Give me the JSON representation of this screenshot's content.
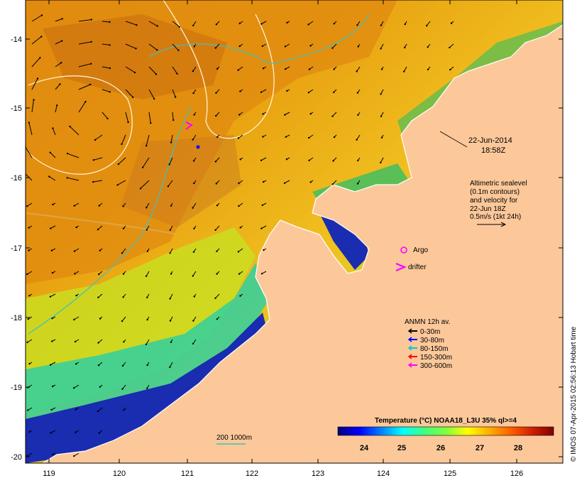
{
  "map": {
    "x_ticks": [
      "119",
      "120",
      "121",
      "122",
      "123",
      "124",
      "125",
      "126"
    ],
    "y_ticks": [
      "-14",
      "-15",
      "-16",
      "-17",
      "-18",
      "-19",
      "-20"
    ],
    "land_color": "#fcc89a",
    "frame_color": "#000000"
  },
  "annotations": {
    "date": "22-Jun-2014",
    "time": "18:58Z",
    "alt_lines": [
      "Altimetric sealevel",
      "(0.1m contours)",
      "and velocity for",
      "22-Jun 18Z",
      "0.5m/s (1kt 24h)"
    ],
    "argo_label": "Argo",
    "drifter_label": "drifter",
    "scale_label": "200  1000m",
    "credit": "© IMOS 07-Apr-2015 02:56:13 Hobart time"
  },
  "legend": {
    "title": "ANMN 12h av.",
    "items": [
      {
        "label": "0-30m",
        "color": "#000000"
      },
      {
        "label": "30-80m",
        "color": "#0000ff"
      },
      {
        "label": "80-150m",
        "color": "#00cccc"
      },
      {
        "label": "150-300m",
        "color": "#ff0000"
      },
      {
        "label": "300-600m",
        "color": "#ff00ff"
      }
    ]
  },
  "colorbar": {
    "title": "Temperature (°C) NOAA18_L3U 35% ql>=4",
    "ticks": [
      "24",
      "25",
      "26",
      "27",
      "28"
    ],
    "colors": [
      "#00007f",
      "#0000ff",
      "#0080ff",
      "#00ffff",
      "#40ff80",
      "#80ff40",
      "#ffff00",
      "#ffb000",
      "#ff6000",
      "#d02000",
      "#800000"
    ]
  }
}
